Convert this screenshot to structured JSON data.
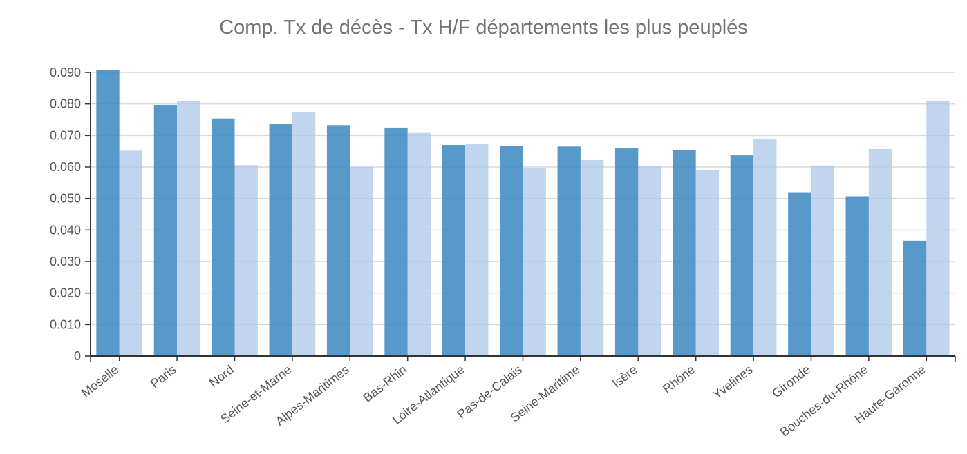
{
  "chart_data": {
    "type": "bar",
    "title": "Comp. Tx de décès - Tx H/F départements les plus peuplés",
    "xlabel": "",
    "ylabel": "",
    "ylim": [
      0,
      0.09
    ],
    "yticks": [
      "0",
      "0.010",
      "0.020",
      "0.030",
      "0.040",
      "0.050",
      "0.060",
      "0.070",
      "0.080",
      "0.090"
    ],
    "grid": true,
    "categories": [
      "Moselle",
      "Paris",
      "Nord",
      "Seine-et-Marne",
      "Alpes-Maritimes",
      "Bas-Rhin",
      "Loire-Atlantique",
      "Pas-de-Calais",
      "Seine-Maritime",
      "Isère",
      "Rhône",
      "Yvelines",
      "Gironde",
      "Bouches-du-Rhône",
      "Haute-Garonne"
    ],
    "series": [
      {
        "color": "#3a87c0",
        "values": [
          0.0907,
          0.0797,
          0.0754,
          0.0737,
          0.0733,
          0.0725,
          0.067,
          0.0668,
          0.0665,
          0.0659,
          0.0654,
          0.0637,
          0.052,
          0.0507,
          0.0366
        ]
      },
      {
        "color": "#aec7e8",
        "values": [
          0.0652,
          0.081,
          0.0606,
          0.0775,
          0.0601,
          0.0708,
          0.0673,
          0.0596,
          0.0622,
          0.0603,
          0.0591,
          0.069,
          0.0605,
          0.0657,
          0.0808
        ]
      }
    ]
  }
}
